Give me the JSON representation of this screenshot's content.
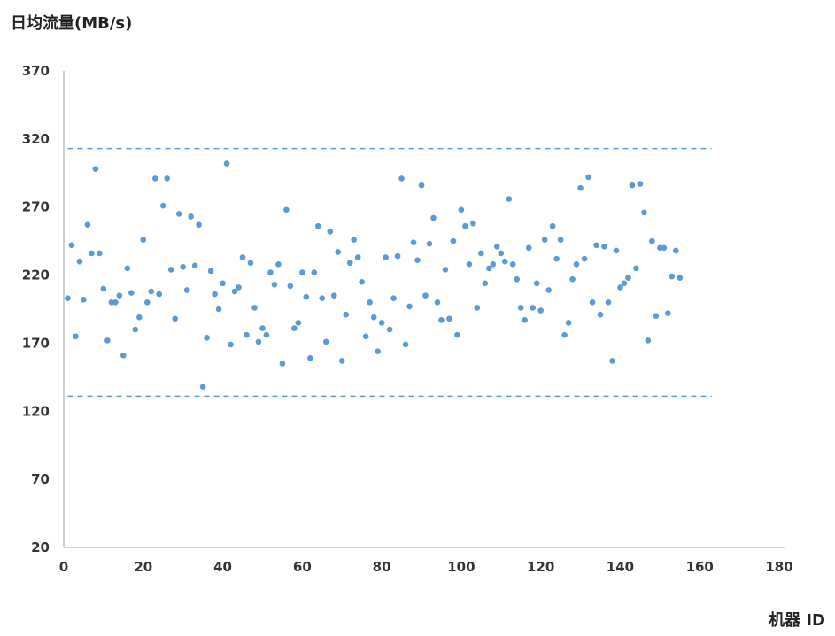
{
  "chart_data": {
    "type": "scatter",
    "ylabel": "日均流量(MB/s)",
    "xlabel": "机器 ID",
    "xlim": [
      0,
      180
    ],
    "ylim": [
      20,
      370
    ],
    "xticks": [
      0,
      20,
      40,
      60,
      80,
      100,
      120,
      140,
      160,
      180
    ],
    "yticks": [
      20,
      70,
      120,
      170,
      220,
      270,
      320,
      370
    ],
    "grid": false,
    "reference_lines": [
      {
        "y": 313,
        "x_from": 1,
        "x_to": 163,
        "style": "dashed"
      },
      {
        "y": 131,
        "x_from": 1,
        "x_to": 163,
        "style": "dashed"
      }
    ],
    "series_color": "#5b9bd5",
    "x": [
      1,
      2,
      3,
      4,
      5,
      6,
      7,
      8,
      9,
      10,
      11,
      12,
      13,
      14,
      15,
      16,
      17,
      18,
      19,
      20,
      21,
      22,
      23,
      24,
      25,
      26,
      27,
      28,
      29,
      30,
      31,
      32,
      33,
      34,
      35,
      36,
      37,
      38,
      39,
      40,
      41,
      42,
      43,
      44,
      45,
      46,
      47,
      48,
      49,
      50,
      51,
      52,
      53,
      54,
      55,
      56,
      57,
      58,
      59,
      60,
      61,
      62,
      63,
      64,
      65,
      66,
      67,
      68,
      69,
      70,
      71,
      72,
      73,
      74,
      75,
      76,
      77,
      78,
      79,
      80,
      81,
      82,
      83,
      84,
      85,
      86,
      87,
      88,
      89,
      90,
      91,
      92,
      93,
      94,
      95,
      96,
      97,
      98,
      99,
      100,
      101,
      102,
      103,
      104,
      105,
      106,
      107,
      108,
      109,
      110,
      111,
      112,
      113,
      114,
      115,
      116,
      117,
      118,
      119,
      120,
      121,
      122,
      123,
      124,
      125,
      126,
      127,
      128,
      129,
      130,
      131,
      132,
      133,
      134,
      135,
      136,
      137,
      138,
      139,
      140,
      141,
      142,
      143,
      144,
      145,
      146,
      147,
      148,
      149,
      150,
      151,
      152,
      153,
      154,
      155
    ],
    "y": [
      203,
      242,
      175,
      230,
      202,
      257,
      236,
      298,
      236,
      210,
      172,
      200,
      200,
      205,
      161,
      225,
      207,
      180,
      189,
      246,
      200,
      208,
      291,
      206,
      271,
      291,
      224,
      188,
      265,
      226,
      209,
      263,
      227,
      257,
      138,
      174,
      223,
      206,
      195,
      214,
      302,
      169,
      208,
      211,
      233,
      176,
      229,
      196,
      171,
      181,
      176,
      222,
      213,
      228,
      155,
      268,
      212,
      181,
      185,
      222,
      204,
      159,
      222,
      256,
      203,
      171,
      252,
      205,
      237,
      157,
      191,
      229,
      246,
      233,
      215,
      175,
      200,
      189,
      164,
      185,
      233,
      180,
      203,
      234,
      291,
      169,
      197,
      244,
      231,
      286,
      205,
      243,
      262,
      200,
      187,
      224,
      188,
      245,
      176,
      268,
      256,
      228,
      258,
      196,
      236,
      214,
      225,
      228,
      241,
      236,
      230,
      276,
      228,
      217,
      196,
      187,
      240,
      196,
      214,
      194,
      246,
      209,
      256,
      232,
      246,
      176,
      185,
      217,
      228,
      284,
      232,
      292,
      200,
      242,
      191,
      241,
      200,
      157,
      238,
      211,
      214,
      218,
      286,
      225,
      287,
      266,
      172,
      245,
      190,
      240,
      240,
      192,
      219,
      238,
      218
    ]
  }
}
